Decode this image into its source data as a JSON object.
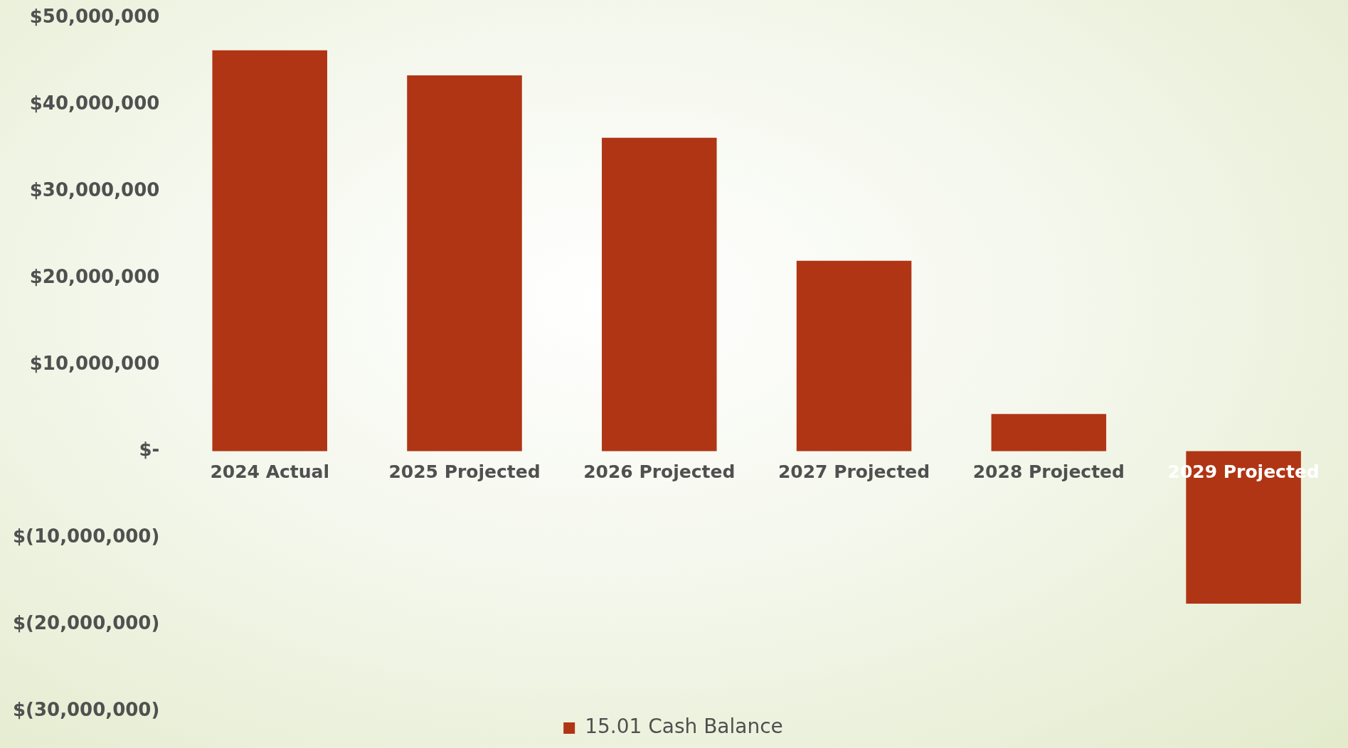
{
  "chart_data": {
    "type": "bar",
    "categories": [
      "2024 Actual",
      "2025 Projected",
      "2026 Projected",
      "2027 Projected",
      "2028 Projected",
      "2029 Projected"
    ],
    "series": [
      {
        "name": "15.01 Cash Balance",
        "color": "#b03515",
        "values": [
          46300000,
          43400000,
          36200000,
          22000000,
          4300000,
          -17600000
        ]
      }
    ],
    "ylim": [
      -30000000,
      50000000
    ],
    "yticks": [
      {
        "value": -30000000,
        "label": "$(30,000,000)"
      },
      {
        "value": -20000000,
        "label": "$(20,000,000)"
      },
      {
        "value": -10000000,
        "label": "$(10,000,000)"
      },
      {
        "value": 0,
        "label": "$-"
      },
      {
        "value": 10000000,
        "label": "$10,000,000"
      },
      {
        "value": 20000000,
        "label": "$20,000,000"
      },
      {
        "value": 30000000,
        "label": "$30,000,000"
      },
      {
        "value": 40000000,
        "label": "$40,000,000"
      },
      {
        "value": 50000000,
        "label": "$50,000,000"
      }
    ],
    "grid": false,
    "legend": "bottom"
  }
}
